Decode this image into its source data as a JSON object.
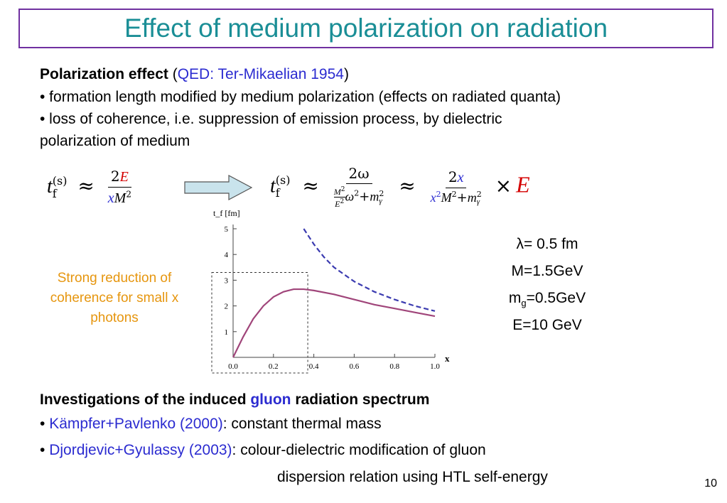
{
  "title": "Effect of medium polarization on radiation",
  "polarization": {
    "heading": "Polarization effect",
    "ref_open": "(",
    "ref": "QED: Ter-Mikaelian 1954",
    "ref_close": ")",
    "bullet1": "• formation length modified by medium polarization (effects on radiated quanta)",
    "bullet2_line1": "• loss of coherence, i.e. suppression of emission process, by dielectric",
    "bullet2_line2": "polarization of medium"
  },
  "formula": {
    "t": "t",
    "sub_f": "f",
    "sup_s": "(s)",
    "approx": "≈",
    "times": "×",
    "E": "E",
    "num1_coef": "2",
    "den1_x": "x",
    "den1_M": "M",
    "sq": "2",
    "num2": "2ω",
    "num3_coef": "2",
    "num3_x": "x",
    "M2": "M",
    "E2": "E",
    "omega2": "ω",
    "plus": "+",
    "m": "m",
    "gamma": "γ"
  },
  "note": {
    "line1": "Strong reduction of",
    "line2": "coherence for small x",
    "line3": "photons"
  },
  "chart_data": {
    "type": "line",
    "ylabel": "t_f [fm]",
    "xlabel": "x",
    "xlim": [
      0.0,
      1.0
    ],
    "ylim": [
      0,
      5
    ],
    "x_ticks": [
      "0.0",
      "0.2",
      "0.4",
      "0.6",
      "0.8",
      "1.0"
    ],
    "y_ticks": [
      "1",
      "2",
      "3",
      "4",
      "5"
    ],
    "series": [
      {
        "style": "solid",
        "color": "#a0457a",
        "x": [
          0.0,
          0.05,
          0.1,
          0.15,
          0.2,
          0.25,
          0.3,
          0.35,
          0.4,
          0.5,
          0.6,
          0.7,
          0.8,
          0.9,
          1.0
        ],
        "y": [
          0.0,
          0.8,
          1.5,
          2.0,
          2.35,
          2.55,
          2.65,
          2.65,
          2.6,
          2.45,
          2.25,
          2.05,
          1.9,
          1.75,
          1.6
        ]
      },
      {
        "style": "dashed",
        "color": "#3b3bb0",
        "x": [
          0.35,
          0.4,
          0.45,
          0.5,
          0.6,
          0.7,
          0.8,
          0.9,
          1.0
        ],
        "y": [
          5.0,
          4.4,
          3.9,
          3.5,
          2.95,
          2.55,
          2.25,
          2.0,
          1.8
        ]
      }
    ],
    "highlight_box": {
      "x": [
        0.0,
        0.37
      ],
      "y": [
        0,
        3.3
      ]
    }
  },
  "params": {
    "lambda": "λ= 0.5 fm",
    "M": "M=1.5GeV",
    "mg_prefix": "m",
    "mg_sub": "g",
    "mg_suffix": "=0.5GeV",
    "E": "E=10 GeV"
  },
  "investigations": {
    "heading_pre": "Investigations of the induced ",
    "heading_gluon": "gluon",
    "heading_post": " radiation spectrum",
    "item1_bullet": "• ",
    "item1_ref": "Kämpfer+Pavlenko (2000)",
    "item1_text": ": constant thermal mass",
    "item2_bullet": "• ",
    "item2_ref": "Djordjevic+Gyulassy (2003)",
    "item2_text": ": colour-dielectric modification of gluon",
    "item2_line2": "dispersion relation using HTL self-energy"
  },
  "page_number": "10",
  "colors": {
    "title": "#1a8e96",
    "title_border": "#7030a0",
    "reference": "#2b2bd0",
    "highlight": "#d40000",
    "note": "#e6960f",
    "arrow_fill": "#c9e3ec"
  }
}
